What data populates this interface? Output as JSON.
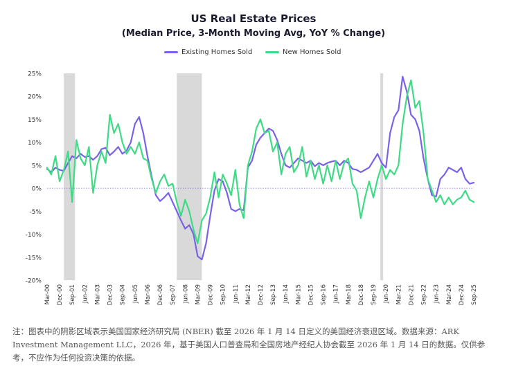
{
  "chart_data": {
    "type": "line",
    "title": "US Real Estate Prices",
    "subtitle": "(Median Price, 3-Month Moving Avg, YoY % Change)",
    "xlabel": "",
    "ylabel": "",
    "y_unit": "%",
    "ylim": [
      -20,
      25
    ],
    "yticks": [
      "25%",
      "20%",
      "15%",
      "10%",
      "5%",
      "0%",
      "-5%",
      "-10%",
      "-15%",
      "-20%"
    ],
    "xlim": [
      "2000-03",
      "2025-09"
    ],
    "xticks": [
      "Mar-00",
      "Dec-00",
      "Sep-01",
      "Jun-02",
      "Mar-03",
      "Dec-03",
      "Sep-04",
      "Jun-05",
      "Mar-06",
      "Dec-06",
      "Sep-07",
      "Jun-08",
      "Mar-09",
      "Dec-09",
      "Sep-10",
      "Jun-11",
      "Mar-12",
      "Dec-12",
      "Sep-13",
      "Jun-14",
      "Mar-15",
      "Dec-15",
      "Sep-16",
      "Jun-17",
      "Mar-18",
      "Dec-18",
      "Sep-19",
      "Jun-20",
      "Mar-21",
      "Dec-21",
      "Sep-22",
      "Jun-23",
      "Mar-24",
      "Dec-24",
      "Sep-25"
    ],
    "grid": false,
    "legend_position": "top",
    "recession_periods": [
      [
        "2001-03",
        "2001-11"
      ],
      [
        "2007-12",
        "2009-06"
      ],
      [
        "2020-02",
        "2020-04"
      ]
    ],
    "colors": {
      "existing": "#7b61e8",
      "new": "#3ddc84",
      "recession": "#d9d9d9",
      "zero_line": "#7b61e8"
    },
    "series": [
      {
        "name": "Existing Homes Sold",
        "color": "#7b61e8",
        "points": [
          [
            "2000-03",
            4.2
          ],
          [
            "2000-06",
            3.5
          ],
          [
            "2000-09",
            4.5
          ],
          [
            "2000-12",
            4.0
          ],
          [
            "2001-03",
            3.8
          ],
          [
            "2001-06",
            5.5
          ],
          [
            "2001-09",
            7.0
          ],
          [
            "2001-12",
            6.5
          ],
          [
            "2002-03",
            7.5
          ],
          [
            "2002-06",
            6.8
          ],
          [
            "2002-09",
            7.0
          ],
          [
            "2002-12",
            6.2
          ],
          [
            "2003-03",
            7.0
          ],
          [
            "2003-06",
            8.5
          ],
          [
            "2003-09",
            8.8
          ],
          [
            "2003-12",
            7.2
          ],
          [
            "2004-03",
            8.0
          ],
          [
            "2004-06",
            9.0
          ],
          [
            "2004-09",
            7.5
          ],
          [
            "2004-12",
            8.2
          ],
          [
            "2005-03",
            10.0
          ],
          [
            "2005-06",
            14.0
          ],
          [
            "2005-09",
            15.5
          ],
          [
            "2005-12",
            12.0
          ],
          [
            "2006-03",
            7.0
          ],
          [
            "2006-06",
            2.5
          ],
          [
            "2006-09",
            -1.5
          ],
          [
            "2006-12",
            -2.8
          ],
          [
            "2007-03",
            -2.0
          ],
          [
            "2007-06",
            -1.0
          ],
          [
            "2007-09",
            -3.0
          ],
          [
            "2007-12",
            -5.0
          ],
          [
            "2008-03",
            -7.0
          ],
          [
            "2008-06",
            -8.8
          ],
          [
            "2008-09",
            -8.0
          ],
          [
            "2008-12",
            -10.0
          ],
          [
            "2009-03",
            -14.8
          ],
          [
            "2009-06",
            -15.5
          ],
          [
            "2009-09",
            -12.0
          ],
          [
            "2009-12",
            -6.0
          ],
          [
            "2010-03",
            -0.5
          ],
          [
            "2010-06",
            2.0
          ],
          [
            "2010-09",
            1.5
          ],
          [
            "2010-12",
            -1.0
          ],
          [
            "2011-03",
            -4.5
          ],
          [
            "2011-06",
            -5.0
          ],
          [
            "2011-09",
            -4.5
          ],
          [
            "2011-12",
            -4.8
          ],
          [
            "2012-03",
            4.5
          ],
          [
            "2012-06",
            6.0
          ],
          [
            "2012-09",
            9.5
          ],
          [
            "2012-12",
            11.0
          ],
          [
            "2013-03",
            12.0
          ],
          [
            "2013-06",
            13.0
          ],
          [
            "2013-09",
            12.5
          ],
          [
            "2013-12",
            10.5
          ],
          [
            "2014-03",
            7.5
          ],
          [
            "2014-06",
            5.0
          ],
          [
            "2014-09",
            4.5
          ],
          [
            "2014-12",
            5.5
          ],
          [
            "2015-03",
            6.5
          ],
          [
            "2015-06",
            6.0
          ],
          [
            "2015-09",
            5.5
          ],
          [
            "2015-12",
            6.0
          ],
          [
            "2016-03",
            4.8
          ],
          [
            "2016-06",
            5.5
          ],
          [
            "2016-09",
            5.0
          ],
          [
            "2016-12",
            5.5
          ],
          [
            "2017-03",
            5.8
          ],
          [
            "2017-06",
            6.0
          ],
          [
            "2017-09",
            5.0
          ],
          [
            "2017-12",
            6.0
          ],
          [
            "2018-03",
            5.5
          ],
          [
            "2018-06",
            4.2
          ],
          [
            "2018-09",
            4.0
          ],
          [
            "2018-12",
            3.5
          ],
          [
            "2019-03",
            4.0
          ],
          [
            "2019-06",
            4.5
          ],
          [
            "2019-09",
            6.0
          ],
          [
            "2019-12",
            7.5
          ],
          [
            "2020-03",
            5.5
          ],
          [
            "2020-06",
            4.5
          ],
          [
            "2020-09",
            12.0
          ],
          [
            "2020-12",
            15.5
          ],
          [
            "2021-03",
            17.0
          ],
          [
            "2021-06",
            24.3
          ],
          [
            "2021-09",
            21.0
          ],
          [
            "2021-12",
            16.0
          ],
          [
            "2022-03",
            15.0
          ],
          [
            "2022-06",
            12.5
          ],
          [
            "2022-09",
            6.5
          ],
          [
            "2022-12",
            2.0
          ],
          [
            "2023-03",
            -1.5
          ],
          [
            "2023-06",
            -1.8
          ],
          [
            "2023-09",
            2.0
          ],
          [
            "2023-12",
            3.0
          ],
          [
            "2024-03",
            4.5
          ],
          [
            "2024-06",
            4.0
          ],
          [
            "2024-09",
            3.5
          ],
          [
            "2024-12",
            4.5
          ],
          [
            "2025-03",
            2.0
          ],
          [
            "2025-06",
            1.0
          ],
          [
            "2025-09",
            1.2
          ]
        ]
      },
      {
        "name": "New Homes Sold",
        "color": "#3ddc84",
        "points": [
          [
            "2000-03",
            4.5
          ],
          [
            "2000-06",
            3.0
          ],
          [
            "2000-09",
            7.0
          ],
          [
            "2000-12",
            1.5
          ],
          [
            "2001-03",
            4.0
          ],
          [
            "2001-06",
            8.0
          ],
          [
            "2001-09",
            -3.0
          ],
          [
            "2001-12",
            10.5
          ],
          [
            "2002-03",
            6.5
          ],
          [
            "2002-06",
            5.0
          ],
          [
            "2002-09",
            9.0
          ],
          [
            "2002-12",
            -1.0
          ],
          [
            "2003-03",
            5.0
          ],
          [
            "2003-06",
            8.0
          ],
          [
            "2003-09",
            5.5
          ],
          [
            "2003-12",
            16.0
          ],
          [
            "2004-03",
            12.0
          ],
          [
            "2004-06",
            14.0
          ],
          [
            "2004-09",
            10.0
          ],
          [
            "2004-12",
            7.5
          ],
          [
            "2005-03",
            9.0
          ],
          [
            "2005-06",
            7.5
          ],
          [
            "2005-09",
            10.0
          ],
          [
            "2005-12",
            6.5
          ],
          [
            "2006-03",
            6.0
          ],
          [
            "2006-06",
            2.0
          ],
          [
            "2006-09",
            -1.0
          ],
          [
            "2006-12",
            1.5
          ],
          [
            "2007-03",
            3.0
          ],
          [
            "2007-06",
            0.5
          ],
          [
            "2007-09",
            1.0
          ],
          [
            "2007-12",
            -3.0
          ],
          [
            "2008-03",
            -6.0
          ],
          [
            "2008-06",
            -2.5
          ],
          [
            "2008-09",
            -5.0
          ],
          [
            "2008-12",
            -9.0
          ],
          [
            "2009-03",
            -12.0
          ],
          [
            "2009-06",
            -7.0
          ],
          [
            "2009-09",
            -5.5
          ],
          [
            "2009-12",
            -2.0
          ],
          [
            "2010-03",
            3.5
          ],
          [
            "2010-06",
            -2.0
          ],
          [
            "2010-09",
            3.0
          ],
          [
            "2010-12",
            1.0
          ],
          [
            "2011-03",
            -1.5
          ],
          [
            "2011-06",
            4.0
          ],
          [
            "2011-09",
            -3.5
          ],
          [
            "2011-12",
            -6.5
          ],
          [
            "2012-03",
            5.0
          ],
          [
            "2012-06",
            8.0
          ],
          [
            "2012-09",
            13.0
          ],
          [
            "2012-12",
            15.0
          ],
          [
            "2013-03",
            12.0
          ],
          [
            "2013-06",
            12.5
          ],
          [
            "2013-09",
            8.0
          ],
          [
            "2013-12",
            10.0
          ],
          [
            "2014-03",
            3.0
          ],
          [
            "2014-06",
            7.5
          ],
          [
            "2014-09",
            9.0
          ],
          [
            "2014-12",
            3.5
          ],
          [
            "2015-03",
            5.0
          ],
          [
            "2015-06",
            9.0
          ],
          [
            "2015-09",
            2.5
          ],
          [
            "2015-12",
            6.0
          ],
          [
            "2016-03",
            2.0
          ],
          [
            "2016-06",
            5.0
          ],
          [
            "2016-09",
            1.0
          ],
          [
            "2016-12",
            5.0
          ],
          [
            "2017-03",
            1.5
          ],
          [
            "2017-06",
            6.0
          ],
          [
            "2017-09",
            2.0
          ],
          [
            "2017-12",
            5.5
          ],
          [
            "2018-03",
            6.5
          ],
          [
            "2018-06",
            1.0
          ],
          [
            "2018-09",
            -0.5
          ],
          [
            "2018-12",
            -6.5
          ],
          [
            "2019-03",
            -2.0
          ],
          [
            "2019-06",
            1.5
          ],
          [
            "2019-09",
            -2.0
          ],
          [
            "2019-12",
            2.0
          ],
          [
            "2020-03",
            5.0
          ],
          [
            "2020-06",
            2.0
          ],
          [
            "2020-09",
            4.0
          ],
          [
            "2020-12",
            3.0
          ],
          [
            "2021-03",
            5.0
          ],
          [
            "2021-06",
            14.0
          ],
          [
            "2021-09",
            20.0
          ],
          [
            "2021-12",
            23.5
          ],
          [
            "2022-03",
            17.5
          ],
          [
            "2022-06",
            19.0
          ],
          [
            "2022-09",
            12.0
          ],
          [
            "2022-12",
            2.0
          ],
          [
            "2023-03",
            -0.5
          ],
          [
            "2023-06",
            -3.0
          ],
          [
            "2023-09",
            -1.5
          ],
          [
            "2023-12",
            -3.5
          ],
          [
            "2024-03",
            -2.0
          ],
          [
            "2024-06",
            -3.5
          ],
          [
            "2024-09",
            -2.5
          ],
          [
            "2024-12",
            -2.0
          ],
          [
            "2025-03",
            -0.5
          ],
          [
            "2025-06",
            -2.5
          ],
          [
            "2025-09",
            -3.0
          ]
        ]
      }
    ]
  },
  "footnote": "注：图表中的阴影区域表示美国国家经济研究局 (NBER) 截至 2026 年 1 月 14 日定义的美国经济衰退区域。数据来源：ARK Investment Management LLC，2026 年，基于美国人口普查局和全国房地产经纪人协会截至 2026 年 1 月 14 日的数据。仅供参考，不应作为任何投资决策的依据。"
}
